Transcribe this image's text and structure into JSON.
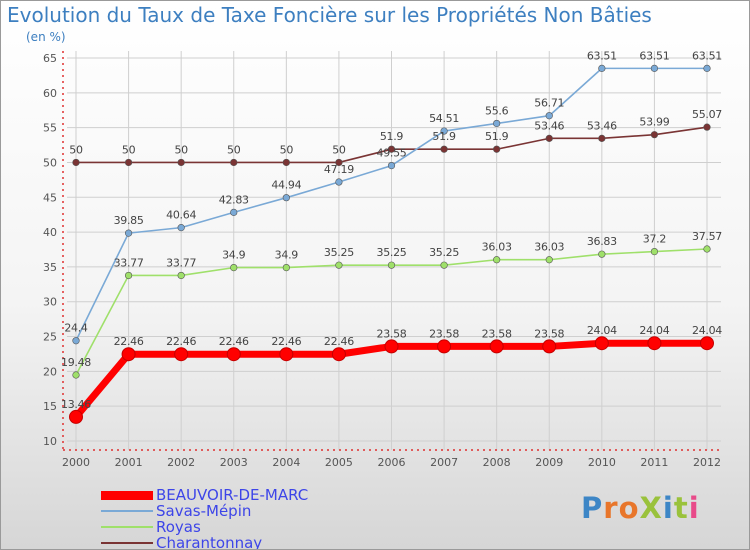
{
  "chart_data": {
    "type": "line",
    "title": "Evolution du Taux de Taxe Foncière sur les Propriétés Non Bâties",
    "ylabel": "(en %)",
    "xlabel": "",
    "categories": [
      "2000",
      "2001",
      "2002",
      "2003",
      "2004",
      "2005",
      "2006",
      "2007",
      "2008",
      "2009",
      "2010",
      "2011",
      "2012"
    ],
    "ylim": [
      10,
      65
    ],
    "yticks": [
      10,
      15,
      20,
      25,
      30,
      35,
      40,
      45,
      50,
      55,
      60,
      65
    ],
    "grid": true,
    "legend_position": "bottom-left",
    "series": [
      {
        "name": "BEAUVOIR-DE-MARC",
        "color": "#ff0000",
        "labels": [
          "13.46",
          "22.46",
          "22.46",
          "22.46",
          "22.46",
          "22.46",
          "23.58",
          "23.58",
          "23.58",
          "23.58",
          "24.04",
          "24.04",
          "24.04"
        ],
        "values": [
          13.46,
          22.46,
          22.46,
          22.46,
          22.46,
          22.46,
          23.58,
          23.58,
          23.58,
          23.58,
          24.04,
          24.04,
          24.04
        ]
      },
      {
        "name": "Savas-Mépin",
        "color": "#7aa9d6",
        "labels": [
          "24.4",
          "39.85",
          "40.64",
          "42.83",
          "44.94",
          "47.19",
          "49.55",
          "54.51",
          "55.6",
          "56.71",
          "63.51",
          "63.51",
          "63.51"
        ],
        "values": [
          24.4,
          39.85,
          40.64,
          42.83,
          44.94,
          47.19,
          49.55,
          54.51,
          55.6,
          56.71,
          63.51,
          63.51,
          63.51
        ]
      },
      {
        "name": "Royas",
        "color": "#9fe06a",
        "labels": [
          "19.48",
          "33.77",
          "33.77",
          "34.9",
          "34.9",
          "35.25",
          "35.25",
          "35.25",
          "36.03",
          "36.03",
          "36.83",
          "37.2",
          "37.57"
        ],
        "values": [
          19.48,
          33.77,
          33.77,
          34.9,
          34.9,
          35.25,
          35.25,
          35.25,
          36.03,
          36.03,
          36.83,
          37.2,
          37.57
        ]
      },
      {
        "name": "Charantonnay",
        "color": "#7a3434",
        "labels": [
          "50",
          "50",
          "50",
          "50",
          "50",
          "50",
          "51.9",
          "51.9",
          "51.9",
          "53.46",
          "53.46",
          "53.99",
          "55.07"
        ],
        "values": [
          50,
          50,
          50,
          50,
          50,
          50,
          51.9,
          51.9,
          51.9,
          53.46,
          53.46,
          53.99,
          55.07
        ]
      }
    ]
  },
  "logo": {
    "text": "ProXiti",
    "colors": [
      "#3d86c6",
      "#e8762b",
      "#e8762b",
      "#9ac23c",
      "#3d86c6",
      "#9ac23c",
      "#e84b8a"
    ]
  }
}
